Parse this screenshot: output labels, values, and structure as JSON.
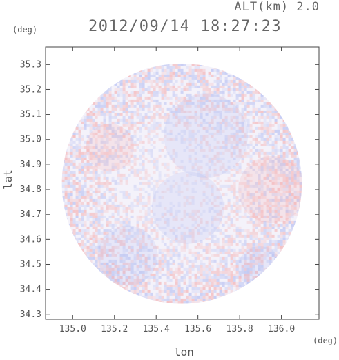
{
  "header": {
    "altitude_label": "ALT(km) 2.0",
    "timestamp": "2012/09/14 18:27:23",
    "y_unit": "(deg)",
    "x_unit": "(deg)"
  },
  "chart_data": {
    "type": "heatmap",
    "title": "2012/09/14 18:27:23",
    "xlabel": "lon",
    "ylabel": "lat",
    "xlim": [
      134.87,
      136.18
    ],
    "ylim": [
      34.28,
      35.37
    ],
    "xticks": [
      "135.0",
      "135.2",
      "135.4",
      "135.6",
      "135.8",
      "136.0"
    ],
    "yticks": [
      "34.3",
      "34.4",
      "34.5",
      "34.6",
      "34.7",
      "34.8",
      "34.9",
      "35.0",
      "35.1",
      "35.2",
      "35.3"
    ],
    "domain": {
      "shape": "circle",
      "center_lon": 135.523,
      "center_lat": 34.823,
      "radius_deg": 0.575
    },
    "colors": {
      "positive": "#f4a0a0",
      "negative": "#a8b4f0",
      "background": "#f4f2fa",
      "axis": "#444444"
    },
    "grid": false
  }
}
